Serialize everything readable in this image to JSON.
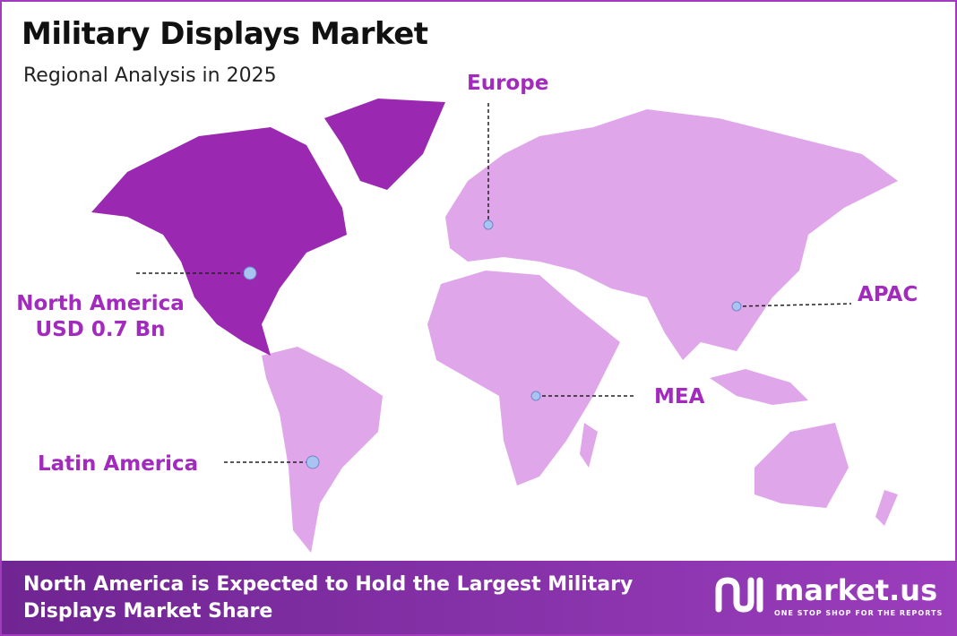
{
  "header": {
    "title": "Military Displays Market",
    "subtitle": "Regional Analysis in 2025"
  },
  "regions": [
    {
      "label": "North America",
      "value_label": "USD 0.7 Bn"
    },
    {
      "label": "Europe"
    },
    {
      "label": "APAC"
    },
    {
      "label": "MEA"
    },
    {
      "label": "Latin America"
    }
  ],
  "footer": {
    "text": "North America is Expected to Hold the Largest Military Displays Market Share",
    "brand": "market.us",
    "tagline": "ONE STOP SHOP FOR THE REPORTS"
  }
}
